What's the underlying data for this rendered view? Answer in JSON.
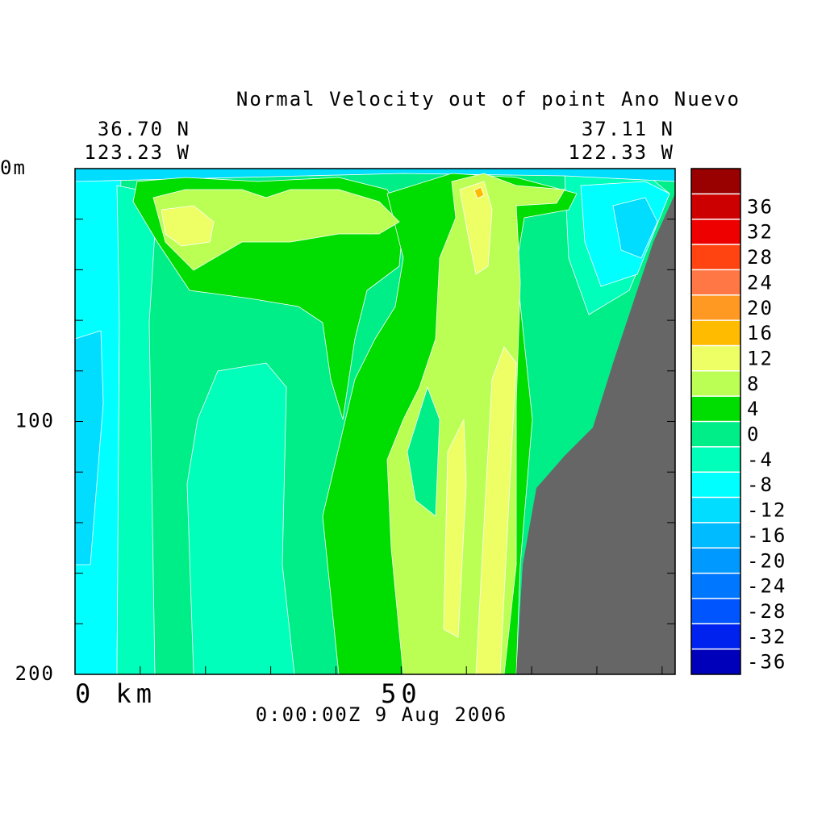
{
  "chart_data": {
    "type": "contour",
    "title": "Normal Velocity out of point Ano Nuevo",
    "left_lat": "36.70 N",
    "left_lon": "123.23 W",
    "right_lat": "37.11 N",
    "right_lon": "122.33 W",
    "footer": "0:00:00Z   9 Aug 2006",
    "xlim": [
      0,
      92
    ],
    "xticks": [
      {
        "value": 0,
        "label": "0 km"
      },
      50
    ],
    "x_minor_ticks": [
      10,
      20,
      30,
      40,
      60,
      70,
      80,
      90
    ],
    "ylim": [
      0,
      200
    ],
    "yticks": [
      {
        "value": 0,
        "label": "0m"
      },
      100,
      200
    ],
    "y_minor_ticks": [
      20,
      40,
      60,
      80,
      120,
      140,
      160,
      180
    ],
    "colorbar": {
      "levels": [
        -40,
        -36,
        -32,
        -28,
        -24,
        -20,
        -16,
        -12,
        -8,
        -4,
        0,
        4,
        8,
        12,
        16,
        20,
        24,
        28,
        32,
        36,
        40
      ],
      "colors": [
        "#0000bb",
        "#0022ee",
        "#0055ff",
        "#0077ff",
        "#0099ff",
        "#00bbff",
        "#00ddff",
        "#00ffff",
        "#00ffbb",
        "#00ee88",
        "#00dd00",
        "#bbff55",
        "#eeff66",
        "#ffbb00",
        "#ff9922",
        "#ff7744",
        "#ff4411",
        "#ee0000",
        "#cc0000",
        "#990000"
      ],
      "ticks": [
        -36,
        -32,
        -28,
        -24,
        -20,
        -16,
        -12,
        -8,
        -4,
        0,
        4,
        8,
        12,
        16,
        20,
        24,
        28,
        32,
        36
      ]
    }
  }
}
